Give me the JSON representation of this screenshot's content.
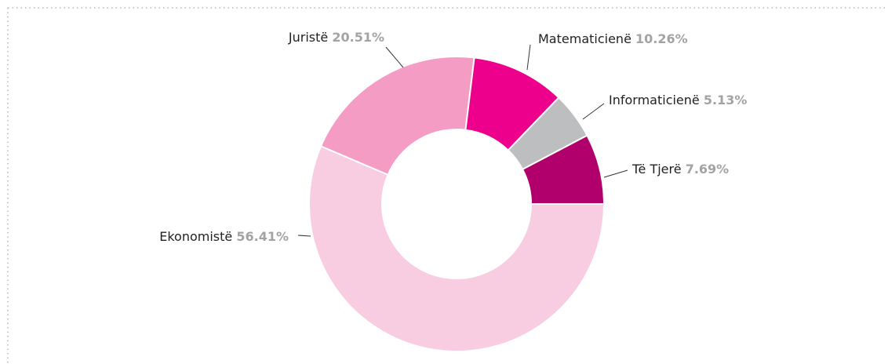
{
  "chart_data": {
    "type": "donut",
    "categories": [
      "Ekonomistë",
      "Juristë",
      "Matematicienë",
      "Informaticienë",
      "Të Tjerë"
    ],
    "values": [
      56.41,
      20.51,
      10.26,
      5.13,
      7.69
    ],
    "value_labels": [
      "56.41%",
      "20.51%",
      "10.26%",
      "5.13%",
      "7.69%"
    ],
    "colors": [
      "#f8cde1",
      "#f49cc4",
      "#ec008c",
      "#bdbec0",
      "#b1006b"
    ]
  }
}
